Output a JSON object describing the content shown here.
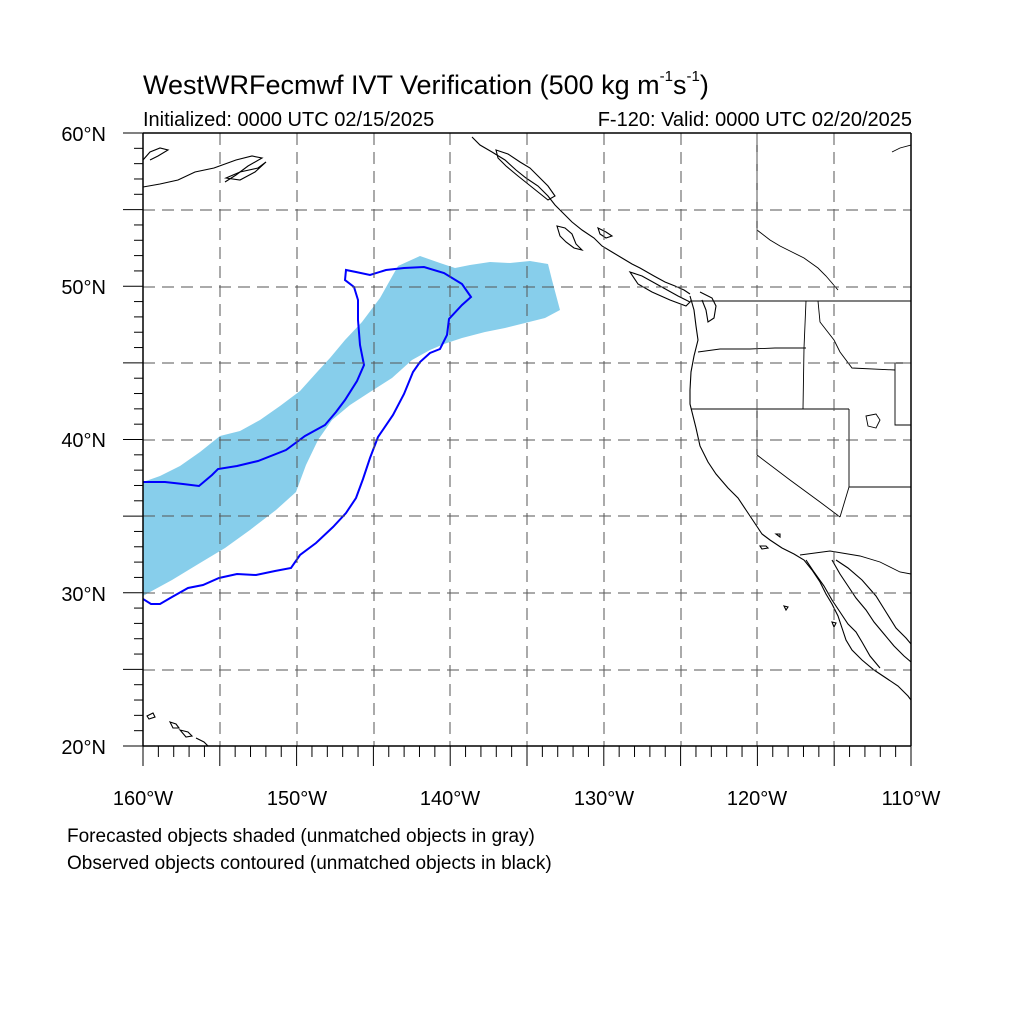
{
  "map": {
    "title_prefix": "WestWRFecmwf IVT Verification (500 kg m",
    "title_exp1": "-1",
    "title_mid": "s",
    "title_exp2": "-1",
    "title_suffix": ")",
    "initialized": "Initialized: 0000 UTC 02/15/2025",
    "valid": "F-120: Valid: 0000 UTC 02/20/2025",
    "extent": {
      "lon_min": -160,
      "lon_max": -110,
      "lat_min": 20,
      "lat_max": 60
    },
    "lat_labels": [
      "20°N",
      "30°N",
      "40°N",
      "50°N",
      "60°N"
    ],
    "lon_labels": [
      "160°W",
      "150°W",
      "140°W",
      "130°W",
      "120°W",
      "110°W"
    ],
    "gridlines": "dashed every 5°",
    "footnote_1": "Forecasted objects shaded (unmatched objects in gray)",
    "footnote_2": "Observed objects contoured (unmatched objects in black)",
    "colors": {
      "forecast_fill": "#87ceeb",
      "observed_contour": "#0000ff",
      "coastline": "#000000",
      "gridline": "#555555"
    }
  }
}
